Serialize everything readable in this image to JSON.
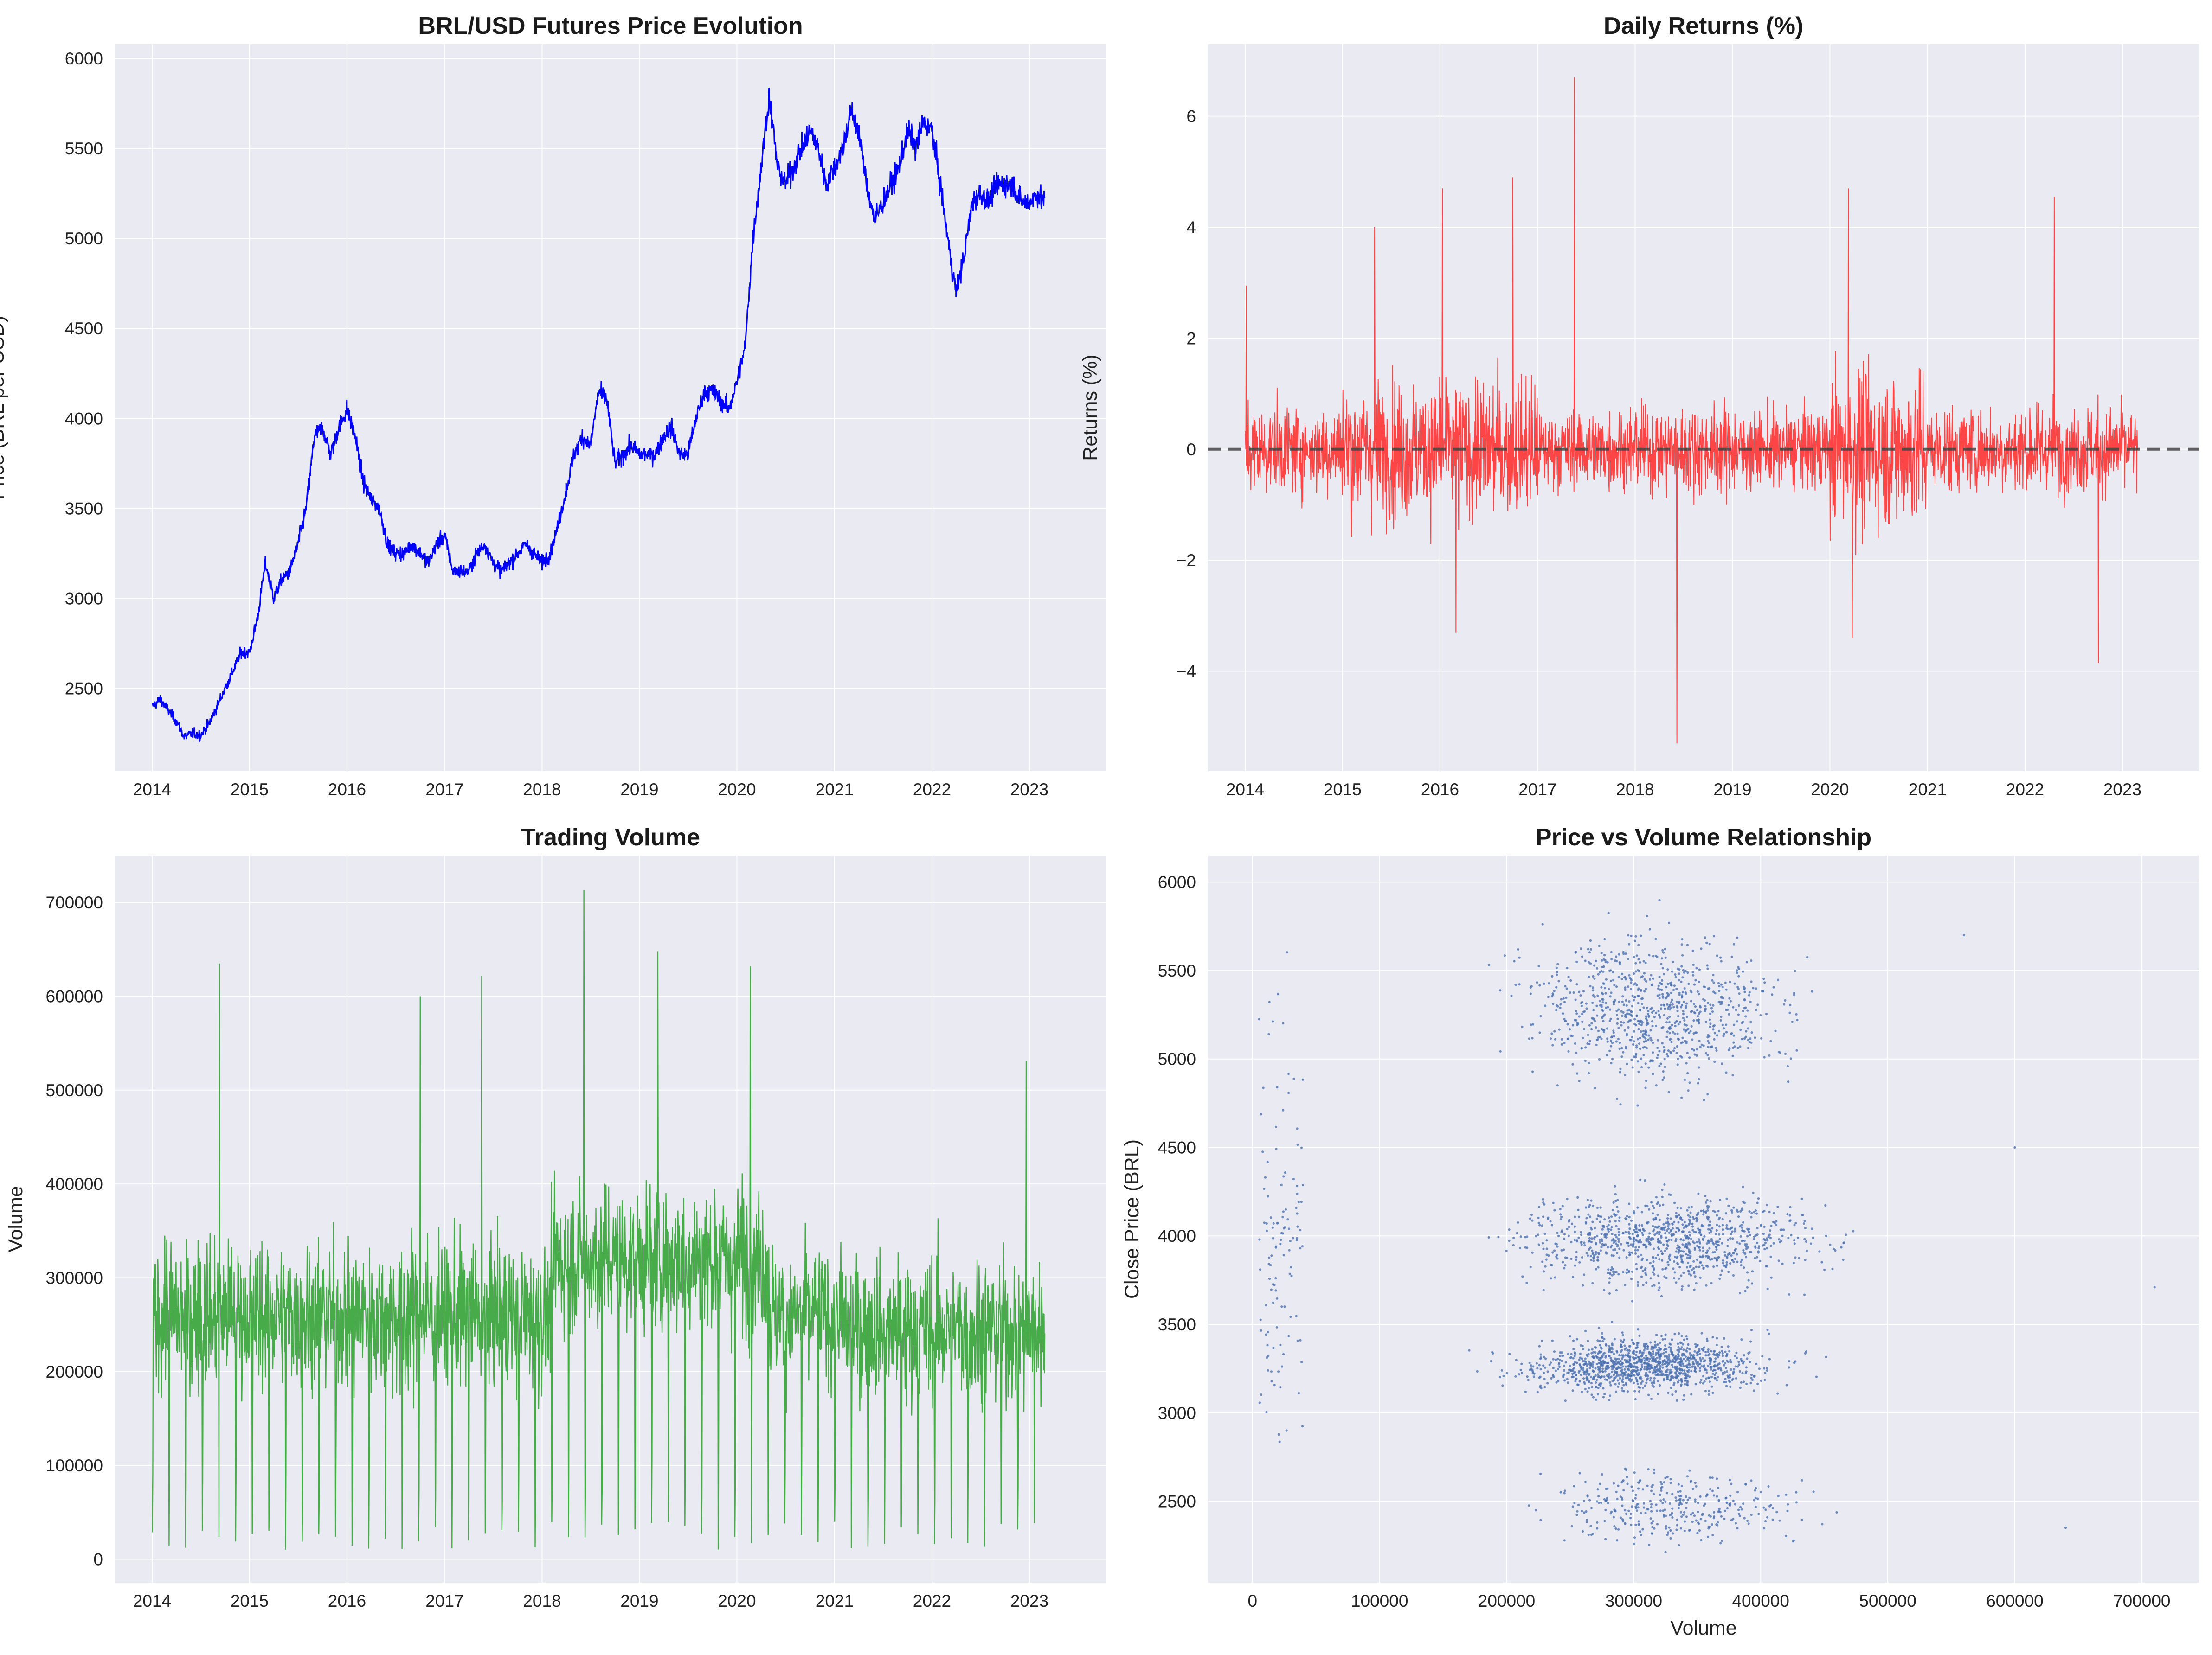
{
  "colors": {
    "axes_background": "#eaeaf2",
    "grid": "#ffffff",
    "price_line": "#0000ff",
    "returns_line": "#ff3333",
    "zero_line": "#444444",
    "volume_line": "#2ca02c",
    "scatter_points": "#4c72b0"
  },
  "chart_data": [
    {
      "id": "price",
      "type": "line",
      "title": "BRL/USD Futures Price Evolution",
      "xlabel": "",
      "ylabel": "Price (BRL per USD)",
      "xlim": [
        "2013-08-15",
        "2023-10-15"
      ],
      "ylim": [
        2040,
        6080
      ],
      "yticks": [
        2500,
        3000,
        3500,
        4000,
        4500,
        5000,
        5500,
        6000
      ],
      "xticks": [
        "2014",
        "2015",
        "2016",
        "2017",
        "2018",
        "2019",
        "2020",
        "2021",
        "2022",
        "2023"
      ],
      "grid": true,
      "x": [
        "2014-01-02",
        "2014-02-01",
        "2014-03-01",
        "2014-04-01",
        "2014-05-01",
        "2014-06-01",
        "2014-07-01",
        "2014-08-01",
        "2014-09-01",
        "2014-10-01",
        "2014-11-01",
        "2014-12-01",
        "2015-01-01",
        "2015-02-01",
        "2015-03-01",
        "2015-04-01",
        "2015-05-01",
        "2015-06-01",
        "2015-07-01",
        "2015-08-01",
        "2015-09-01",
        "2015-10-01",
        "2015-11-01",
        "2015-12-01",
        "2016-01-01",
        "2016-02-01",
        "2016-03-01",
        "2016-04-01",
        "2016-05-01",
        "2016-06-01",
        "2016-07-01",
        "2016-08-01",
        "2016-09-01",
        "2016-10-01",
        "2016-11-01",
        "2016-12-01",
        "2017-01-01",
        "2017-02-01",
        "2017-03-01",
        "2017-04-01",
        "2017-05-01",
        "2017-06-01",
        "2017-07-01",
        "2017-08-01",
        "2017-09-01",
        "2017-10-01",
        "2017-11-01",
        "2017-12-01",
        "2018-01-01",
        "2018-02-01",
        "2018-03-01",
        "2018-04-01",
        "2018-05-01",
        "2018-06-01",
        "2018-07-01",
        "2018-08-01",
        "2018-09-01",
        "2018-10-01",
        "2018-11-01",
        "2018-12-01",
        "2019-01-01",
        "2019-02-01",
        "2019-03-01",
        "2019-04-01",
        "2019-05-01",
        "2019-06-01",
        "2019-07-01",
        "2019-08-01",
        "2019-09-01",
        "2019-10-01",
        "2019-11-01",
        "2019-12-01",
        "2020-01-01",
        "2020-02-01",
        "2020-03-01",
        "2020-04-01",
        "2020-05-01",
        "2020-06-01",
        "2020-07-01",
        "2020-08-01",
        "2020-09-01",
        "2020-10-01",
        "2020-11-01",
        "2020-12-01",
        "2021-01-01",
        "2021-02-01",
        "2021-03-01",
        "2021-04-01",
        "2021-05-01",
        "2021-06-01",
        "2021-07-01",
        "2021-08-01",
        "2021-09-01",
        "2021-10-01",
        "2021-11-01",
        "2021-12-01",
        "2022-01-01",
        "2022-02-01",
        "2022-03-01",
        "2022-04-01",
        "2022-05-01",
        "2022-06-01",
        "2022-07-01",
        "2022-08-01",
        "2022-09-01",
        "2022-10-01",
        "2022-11-01",
        "2022-12-01",
        "2023-01-01",
        "2023-02-01",
        "2023-03-01"
      ],
      "y": [
        2400,
        2440,
        2380,
        2320,
        2230,
        2250,
        2240,
        2300,
        2400,
        2500,
        2600,
        2700,
        2700,
        2900,
        3200,
        3000,
        3100,
        3150,
        3300,
        3500,
        3900,
        3950,
        3800,
        3950,
        4050,
        3900,
        3650,
        3550,
        3500,
        3300,
        3250,
        3250,
        3300,
        3250,
        3200,
        3300,
        3350,
        3150,
        3150,
        3150,
        3250,
        3300,
        3200,
        3150,
        3200,
        3250,
        3300,
        3250,
        3200,
        3250,
        3400,
        3600,
        3800,
        3900,
        3850,
        4150,
        4100,
        3750,
        3800,
        3850,
        3800,
        3800,
        3800,
        3900,
        3950,
        3800,
        3800,
        4000,
        4150,
        4150,
        4100,
        4050,
        4200,
        4400,
        5000,
        5400,
        5800,
        5400,
        5300,
        5400,
        5500,
        5600,
        5500,
        5300,
        5400,
        5500,
        5700,
        5600,
        5300,
        5100,
        5200,
        5300,
        5400,
        5600,
        5500,
        5650,
        5600,
        5300,
        5000,
        4700,
        4900,
        5200,
        5250,
        5200,
        5300,
        5300,
        5300,
        5200,
        5200,
        5250,
        5200
      ]
    },
    {
      "id": "returns",
      "type": "line",
      "title": "Daily Returns (%)",
      "xlabel": "",
      "ylabel": "Returns (%)",
      "xlim": [
        "2013-08-15",
        "2023-10-15"
      ],
      "ylim": [
        -5.8,
        7.3
      ],
      "yticks": [
        -4,
        -2,
        0,
        2,
        4,
        6
      ],
      "ytick_labels": [
        "−4",
        "−2",
        "0",
        "2",
        "4",
        "6"
      ],
      "xticks": [
        "2014",
        "2015",
        "2016",
        "2017",
        "2018",
        "2019",
        "2020",
        "2021",
        "2022",
        "2023"
      ],
      "reference_line": 0,
      "grid": true,
      "spikes": [
        {
          "x": "2014-01-05",
          "y": 2.95
        },
        {
          "x": "2015-05-01",
          "y": 4.0
        },
        {
          "x": "2016-01-10",
          "y": 4.7
        },
        {
          "x": "2016-03-01",
          "y": -3.3
        },
        {
          "x": "2016-09-30",
          "y": 4.9
        },
        {
          "x": "2017-05-18",
          "y": 6.7
        },
        {
          "x": "2018-06-07",
          "y": -5.3
        },
        {
          "x": "2020-03-10",
          "y": 4.7
        },
        {
          "x": "2020-03-25",
          "y": -3.4
        },
        {
          "x": "2022-04-20",
          "y": 4.55
        },
        {
          "x": "2022-10-03",
          "y": -3.85
        }
      ]
    },
    {
      "id": "volume",
      "type": "line",
      "title": "Trading Volume",
      "xlabel": "",
      "ylabel": "Volume",
      "xlim": [
        "2013-08-15",
        "2023-10-15"
      ],
      "ylim": [
        -25000,
        750000
      ],
      "yticks": [
        0,
        100000,
        200000,
        300000,
        400000,
        500000,
        600000,
        700000
      ],
      "xticks": [
        "2014",
        "2015",
        "2016",
        "2017",
        "2018",
        "2019",
        "2020",
        "2021",
        "2022",
        "2023"
      ],
      "grid": true,
      "spikes": [
        {
          "x": "2014-09-10",
          "y": 635000
        },
        {
          "x": "2016-10-01",
          "y": 600000
        },
        {
          "x": "2017-05-20",
          "y": 622000
        },
        {
          "x": "2018-06-07",
          "y": 713000
        },
        {
          "x": "2019-03-10",
          "y": 648000
        },
        {
          "x": "2020-02-20",
          "y": 632000
        },
        {
          "x": "2022-12-20",
          "y": 531000
        }
      ]
    },
    {
      "id": "scatter",
      "type": "scatter",
      "title": "Price vs Volume Relationship",
      "xlabel": "Volume",
      "ylabel": "Close Price (BRL)",
      "xlim": [
        -35000,
        745000
      ],
      "ylim": [
        2040,
        6150
      ],
      "xticks": [
        0,
        100000,
        200000,
        300000,
        400000,
        500000,
        600000,
        700000
      ],
      "yticks": [
        2500,
        3000,
        3500,
        4000,
        4500,
        5000,
        5500,
        6000
      ],
      "grid": true,
      "clusters": [
        {
          "volume_range": [
            170000,
            470000
          ],
          "price_range": [
            4700,
            5850
          ],
          "count": 900
        },
        {
          "volume_range": [
            160000,
            500000
          ],
          "price_range": [
            3600,
            4350
          ],
          "count": 1000
        },
        {
          "volume_range": [
            170000,
            450000
          ],
          "price_range": [
            3050,
            3500
          ],
          "count": 1200
        },
        {
          "volume_range": [
            180000,
            480000
          ],
          "price_range": [
            2200,
            2750
          ],
          "count": 350
        },
        {
          "volume_range": [
            5000,
            40000
          ],
          "price_range": [
            2200,
            5800
          ],
          "count": 120
        }
      ],
      "outliers": [
        {
          "x": 710000,
          "y": 3710
        },
        {
          "x": 640000,
          "y": 2350
        },
        {
          "x": 600000,
          "y": 4500
        },
        {
          "x": 560000,
          "y": 5700
        }
      ]
    }
  ]
}
